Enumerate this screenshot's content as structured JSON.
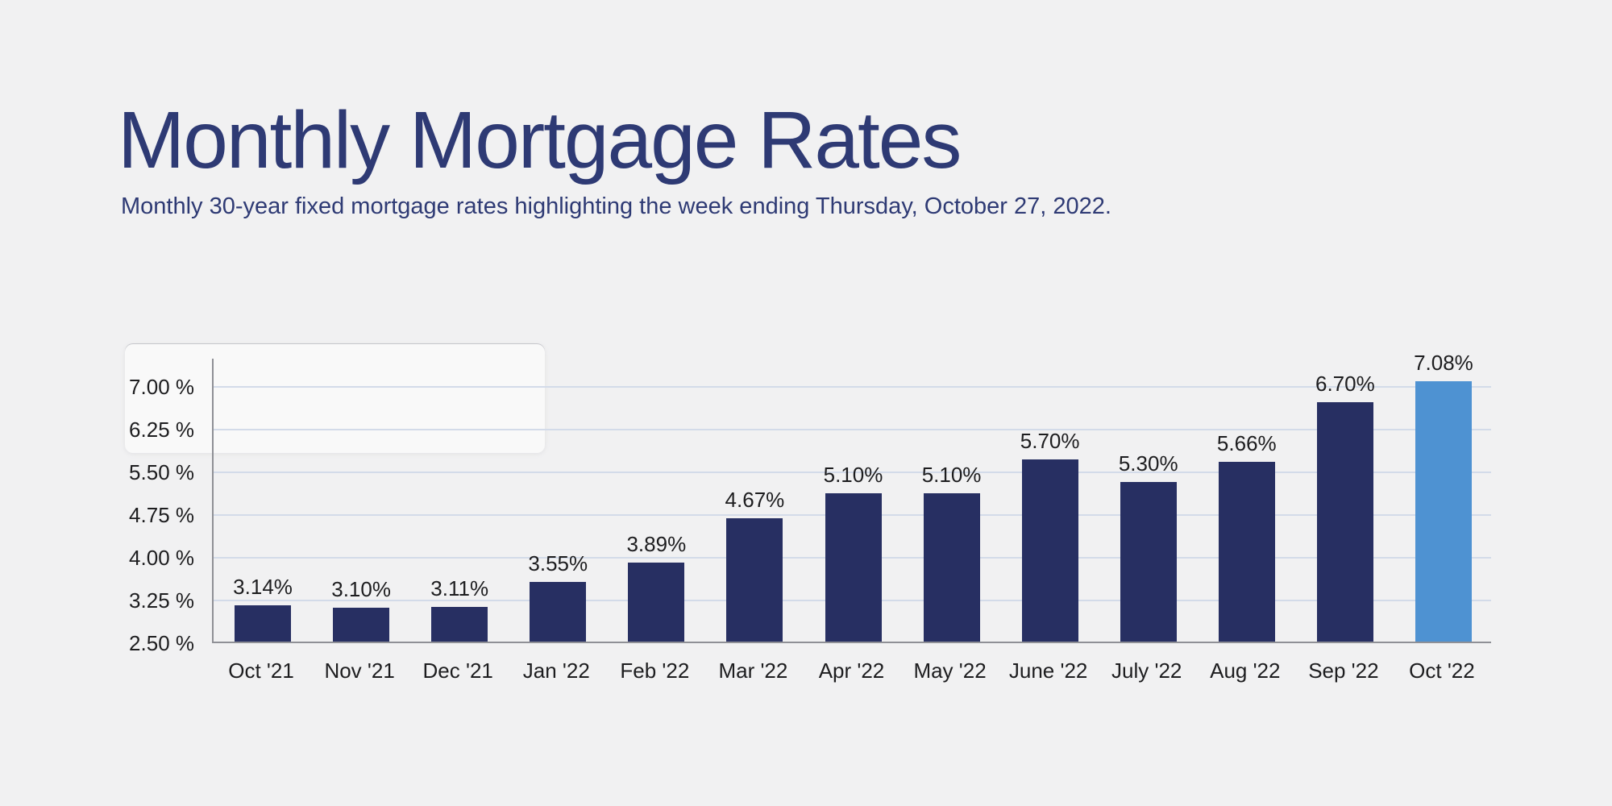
{
  "header": {
    "title": "Monthly Mortgage Rates",
    "subtitle": "Monthly 30-year fixed mortgage rates highlighting the week ending Thursday, October 27, 2022."
  },
  "chart_data": {
    "type": "bar",
    "title": "Monthly Mortgage Rates",
    "subtitle": "Monthly 30-year fixed mortgage rates highlighting the week ending Thursday, October 27, 2022.",
    "categories": [
      "Oct '21",
      "Nov '21",
      "Dec '21",
      "Jan '22",
      "Feb '22",
      "Mar '22",
      "Apr '22",
      "May '22",
      "June '22",
      "July '22",
      "Aug '22",
      "Sep '22",
      "Oct '22"
    ],
    "values": [
      3.14,
      3.1,
      3.11,
      3.55,
      3.89,
      4.67,
      5.1,
      5.1,
      5.7,
      5.3,
      5.66,
      6.7,
      7.08
    ],
    "value_labels": [
      "3.14%",
      "3.10%",
      "3.11%",
      "3.55%",
      "3.89%",
      "4.67%",
      "5.10%",
      "5.10%",
      "5.70%",
      "5.30%",
      "5.66%",
      "6.70%",
      "7.08%"
    ],
    "xlabel": "",
    "ylabel": "",
    "ylim": [
      2.5,
      7.5
    ],
    "y_ticks": [
      {
        "value": 7.0,
        "label": "7.00 %"
      },
      {
        "value": 6.25,
        "label": "6.25 %"
      },
      {
        "value": 5.5,
        "label": "5.50 %"
      },
      {
        "value": 4.75,
        "label": "4.75 %"
      },
      {
        "value": 4.0,
        "label": "4.00 %"
      },
      {
        "value": 3.25,
        "label": "3.25 %"
      },
      {
        "value": 2.5,
        "label": "2.50 %"
      }
    ],
    "grid": true,
    "legend": false,
    "highlight_index": 12,
    "colors": {
      "bar": "#272f62",
      "bar_highlight": "#4e92d2",
      "grid_line": "#d3dbe9",
      "axis_line": "#8f9096",
      "tick_text": "#1d1d1f",
      "title_text": "#2e3a74",
      "background": "#f1f1f2",
      "highlight_panel": "rgba(255,255,255,0.55)"
    }
  }
}
